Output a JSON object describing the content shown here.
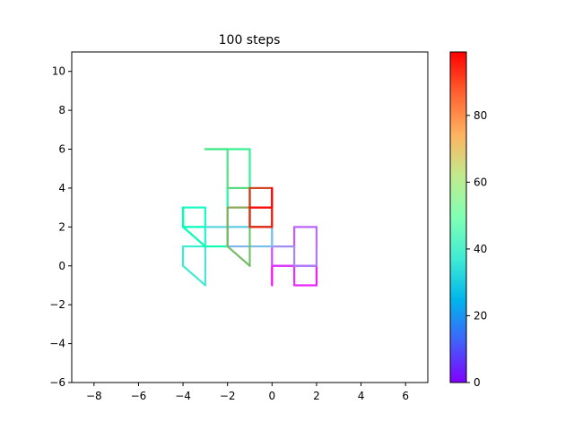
{
  "chart_data": {
    "type": "line",
    "title": "100 steps",
    "xlabel": "",
    "ylabel": "",
    "xlim": [
      -9,
      7
    ],
    "ylim": [
      -6,
      11
    ],
    "xticks": [
      -8,
      -6,
      -4,
      -2,
      0,
      2,
      4,
      6
    ],
    "yticks": [
      -6,
      -4,
      -2,
      0,
      2,
      4,
      6,
      8,
      10
    ],
    "grid": false,
    "colormap": "rainbow",
    "colorbar": {
      "min": 0,
      "max": 99,
      "ticks": [
        0,
        20,
        40,
        60,
        80
      ]
    },
    "path": {
      "x": [
        0,
        0,
        1,
        2,
        2,
        1,
        1,
        0,
        0,
        1,
        1,
        2,
        2,
        2,
        1,
        1,
        0,
        0,
        -1,
        -2,
        -2,
        -1,
        0,
        0,
        -1,
        -2,
        -3,
        -3,
        -3,
        -3,
        -4,
        -4,
        -3,
        -3,
        -4,
        -4,
        -3,
        -3,
        -4,
        -4,
        -4,
        -3,
        -2,
        -2,
        -2,
        -2,
        -1,
        -1,
        -1,
        -2,
        -3,
        -2,
        -2,
        -2,
        -1,
        -1,
        -1,
        -1,
        -1,
        -2,
        -2,
        -2,
        -1,
        -1,
        0,
        0,
        0,
        -1,
        -1,
        -1,
        0,
        0,
        0,
        -1,
        -1,
        -1,
        0,
        0,
        -1,
        0,
        0
      ],
      "y": [
        -1,
        0,
        0,
        0,
        -1,
        -1,
        0,
        0,
        1,
        1,
        2,
        2,
        1,
        0,
        0,
        1,
        1,
        2,
        2,
        2,
        1,
        1,
        1,
        2,
        2,
        2,
        2,
        1,
        0,
        -1,
        0,
        1,
        1,
        2,
        2,
        3,
        3,
        2,
        2,
        3,
        2,
        1,
        1,
        2,
        3,
        4,
        4,
        5,
        6,
        6,
        6,
        6,
        5,
        4,
        4,
        3,
        2,
        1,
        0,
        1,
        2,
        3,
        3,
        2,
        2,
        3,
        4,
        4,
        3,
        2,
        2,
        3,
        4,
        4,
        3,
        2,
        2,
        3,
        3,
        3,
        4
      ]
    }
  }
}
